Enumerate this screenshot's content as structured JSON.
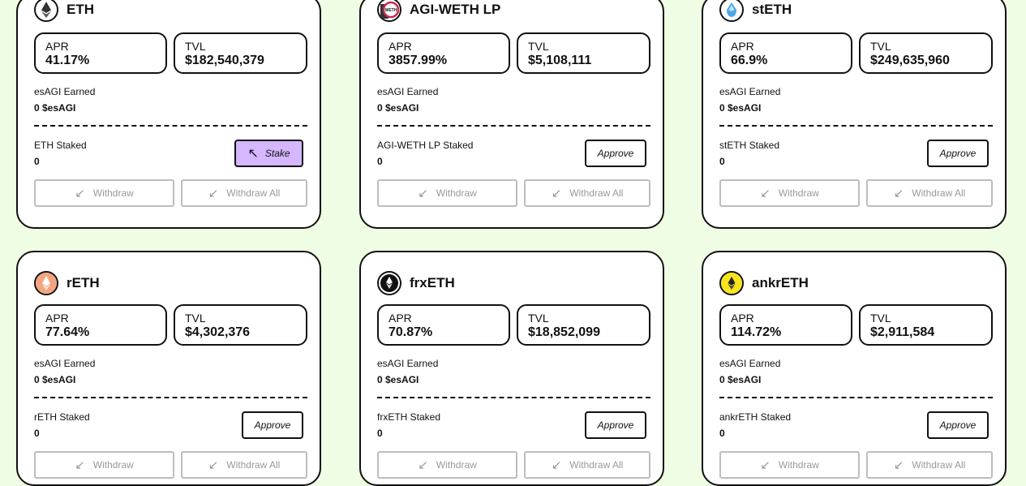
{
  "labels": {
    "apr": "APR",
    "tvl": "TVL",
    "earned": "esAGI Earned",
    "withdraw": "Withdraw",
    "withdraw_all": "Withdraw All",
    "approve": "Approve",
    "stake": "Stake"
  },
  "cards": [
    {
      "name": "ETH",
      "icon": "eth-icon",
      "apr": "41.17%",
      "tvl": "$182,540,379",
      "earned": "0 $esAGI",
      "staked_label": "ETH Staked",
      "staked": "0",
      "action": "stake"
    },
    {
      "name": "AGI-WETH LP",
      "icon": "weth-lp-icon",
      "apr": "3857.99%",
      "tvl": "$5,108,111",
      "earned": "0 $esAGI",
      "staked_label": "AGI-WETH LP Staked",
      "staked": "0",
      "action": "approve"
    },
    {
      "name": "stETH",
      "icon": "steth-icon",
      "apr": "66.9%",
      "tvl": "$249,635,960",
      "earned": "0 $esAGI",
      "staked_label": "stETH Staked",
      "staked": "0",
      "action": "approve"
    },
    {
      "name": "rETH",
      "icon": "reth-icon",
      "apr": "77.64%",
      "tvl": "$4,302,376",
      "earned": "0 $esAGI",
      "staked_label": "rETH Staked",
      "staked": "0",
      "action": "approve"
    },
    {
      "name": "frxETH",
      "icon": "frxeth-icon",
      "apr": "70.87%",
      "tvl": "$18,852,099",
      "earned": "0 $esAGI",
      "staked_label": "frxETH Staked",
      "staked": "0",
      "action": "approve"
    },
    {
      "name": "ankrETH",
      "icon": "ankreth-icon",
      "apr": "114.72%",
      "tvl": "$2,911,584",
      "earned": "0 $esAGI",
      "staked_label": "ankrETH Staked",
      "staked": "0",
      "action": "approve"
    }
  ],
  "colors": {
    "background": "#eefde3",
    "stake_button": "#d5b6ff",
    "reth_logo": "#f4a57f",
    "ankreth_logo": "#f7e51b",
    "steth_logo": "#4fa5e8"
  }
}
